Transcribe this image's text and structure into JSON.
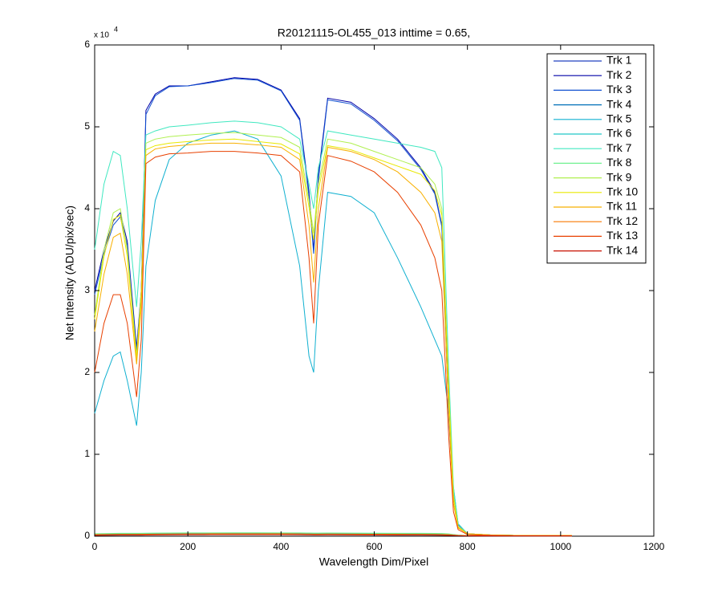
{
  "chart_data": {
    "type": "line",
    "title": "R20121115-OL455_013 inttime = 0.65,",
    "x_label": "Wavelength Dim/Pixel",
    "y_label": "Net Intensity (ADU/pix/sec)",
    "y_multiplier": "x 10",
    "y_multiplier_exponent": "4",
    "x": [
      0,
      20,
      40,
      55,
      70,
      90,
      100,
      110,
      130,
      160,
      200,
      250,
      300,
      350,
      400,
      440,
      460,
      470,
      480,
      500,
      550,
      600,
      650,
      700,
      730,
      745,
      760,
      770,
      780,
      800,
      850,
      900,
      1000,
      1024
    ],
    "xlim": [
      0,
      1200
    ],
    "xticks": [
      0,
      200,
      400,
      600,
      800,
      1000,
      1200
    ],
    "ylim": [
      0,
      60000
    ],
    "yticks": [
      {
        "value": 0,
        "label": "0"
      },
      {
        "value": 10000,
        "label": "1"
      },
      {
        "value": 20000,
        "label": "2"
      },
      {
        "value": 30000,
        "label": "3"
      },
      {
        "value": 40000,
        "label": "4"
      },
      {
        "value": 50000,
        "label": "5"
      },
      {
        "value": 60000,
        "label": "6"
      }
    ],
    "grid": false,
    "legend": "upper right",
    "series": [
      {
        "name": "Trk 1",
        "color": "#2040c0",
        "values": [
          200,
          220,
          240,
          250,
          250,
          250,
          260,
          270,
          280,
          290,
          300,
          310,
          320,
          320,
          310,
          300,
          290,
          280,
          280,
          290,
          280,
          270,
          260,
          250,
          240,
          230,
          200,
          150,
          100,
          60,
          50,
          40,
          30,
          30
        ]
      },
      {
        "name": "Trk 2",
        "color": "#0000a8",
        "values": [
          30000,
          35000,
          38500,
          39500,
          36000,
          23000,
          30000,
          52000,
          54000,
          55000,
          55000,
          55500,
          56000,
          55800,
          54500,
          51000,
          42000,
          35000,
          44000,
          53500,
          53000,
          51000,
          48500,
          45000,
          42000,
          38000,
          15000,
          5000,
          1500,
          300,
          150,
          100,
          100,
          100
        ]
      },
      {
        "name": "Trk 3",
        "color": "#1050d0",
        "values": [
          29500,
          34500,
          38000,
          39000,
          35500,
          22500,
          29500,
          51500,
          53800,
          54900,
          55000,
          55400,
          55900,
          55700,
          54400,
          50800,
          41500,
          34500,
          43500,
          53300,
          52800,
          50800,
          48300,
          44800,
          41800,
          37800,
          14500,
          4800,
          1400,
          300,
          150,
          100,
          100,
          100
        ]
      },
      {
        "name": "Trk 4",
        "color": "#0070b8",
        "values": [
          150,
          160,
          170,
          180,
          180,
          180,
          190,
          200,
          210,
          220,
          220,
          230,
          240,
          240,
          230,
          220,
          210,
          200,
          200,
          210,
          200,
          190,
          180,
          170,
          160,
          150,
          130,
          100,
          70,
          50,
          40,
          30,
          30,
          30
        ]
      },
      {
        "name": "Trk 5",
        "color": "#10b0d0",
        "values": [
          15000,
          19000,
          22000,
          22500,
          19000,
          13500,
          20000,
          33000,
          41000,
          46000,
          48000,
          49000,
          49500,
          48500,
          44000,
          33000,
          22000,
          20000,
          30000,
          42000,
          41500,
          39500,
          34000,
          28000,
          24000,
          22000,
          15000,
          6000,
          1500,
          300,
          150,
          100,
          100,
          100
        ]
      },
      {
        "name": "Trk 6",
        "color": "#20c8c8",
        "values": [
          250,
          270,
          290,
          300,
          300,
          300,
          310,
          320,
          330,
          340,
          350,
          360,
          370,
          370,
          360,
          350,
          340,
          330,
          330,
          340,
          330,
          320,
          310,
          300,
          290,
          280,
          240,
          180,
          120,
          70,
          60,
          50,
          40,
          40
        ]
      },
      {
        "name": "Trk 7",
        "color": "#40e8c0",
        "values": [
          35000,
          43000,
          47000,
          46500,
          40000,
          28000,
          36000,
          49000,
          49500,
          50000,
          50200,
          50500,
          50700,
          50500,
          50000,
          48500,
          43000,
          40000,
          45000,
          49500,
          49000,
          48500,
          48000,
          47500,
          47000,
          45000,
          20000,
          6000,
          1500,
          300,
          150,
          100,
          100,
          100
        ]
      },
      {
        "name": "Trk 8",
        "color": "#70f090",
        "values": [
          300,
          320,
          340,
          350,
          350,
          350,
          360,
          370,
          380,
          390,
          400,
          410,
          420,
          420,
          410,
          400,
          390,
          380,
          380,
          390,
          380,
          370,
          360,
          350,
          340,
          330,
          280,
          200,
          130,
          80,
          70,
          60,
          50,
          50
        ]
      },
      {
        "name": "Trk 9",
        "color": "#b0f050",
        "values": [
          27000,
          35000,
          39500,
          40000,
          35000,
          22000,
          30000,
          48000,
          48500,
          48800,
          49000,
          49200,
          49300,
          49000,
          48700,
          47500,
          41000,
          37000,
          43000,
          48500,
          48000,
          47000,
          46000,
          45000,
          43000,
          40000,
          18000,
          5000,
          1200,
          300,
          150,
          100,
          100,
          100
        ]
      },
      {
        "name": "Trk 10",
        "color": "#e8e800",
        "values": [
          26500,
          34200,
          38700,
          39200,
          34200,
          21500,
          29300,
          47200,
          47700,
          48000,
          48200,
          48400,
          48500,
          48200,
          47900,
          46700,
          40200,
          36200,
          42200,
          47700,
          47200,
          46200,
          45200,
          44200,
          42200,
          39200,
          17500,
          4800,
          1100,
          300,
          150,
          100,
          100,
          100
        ]
      },
      {
        "name": "Trk 11",
        "color": "#f8b000",
        "values": [
          25000,
          32000,
          36500,
          37000,
          32000,
          21000,
          28000,
          46500,
          47300,
          47600,
          47800,
          48000,
          48000,
          47800,
          47500,
          46000,
          38000,
          31000,
          40000,
          47500,
          47000,
          46000,
          44500,
          42000,
          39500,
          36000,
          15000,
          4000,
          1000,
          300,
          150,
          100,
          100,
          100
        ]
      },
      {
        "name": "Trk 12",
        "color": "#f87800",
        "values": [
          200,
          210,
          220,
          230,
          230,
          230,
          240,
          250,
          260,
          270,
          280,
          290,
          300,
          300,
          290,
          280,
          270,
          260,
          260,
          270,
          260,
          250,
          240,
          230,
          220,
          210,
          180,
          140,
          100,
          60,
          50,
          40,
          30,
          30
        ]
      },
      {
        "name": "Trk 13",
        "color": "#e84000",
        "values": [
          20000,
          26000,
          29500,
          29500,
          26000,
          17000,
          24000,
          45500,
          46300,
          46700,
          46800,
          47000,
          47000,
          46800,
          46500,
          44500,
          34000,
          26000,
          38000,
          46500,
          45800,
          44500,
          42000,
          38000,
          34000,
          30000,
          12000,
          3000,
          800,
          200,
          100,
          50,
          50,
          50
        ]
      },
      {
        "name": "Trk 14",
        "color": "#c81000",
        "values": [
          100,
          110,
          120,
          130,
          130,
          130,
          140,
          150,
          160,
          170,
          180,
          190,
          200,
          200,
          190,
          180,
          170,
          160,
          160,
          170,
          160,
          150,
          140,
          130,
          120,
          110,
          100,
          80,
          60,
          40,
          30,
          20,
          20,
          20
        ]
      }
    ]
  }
}
